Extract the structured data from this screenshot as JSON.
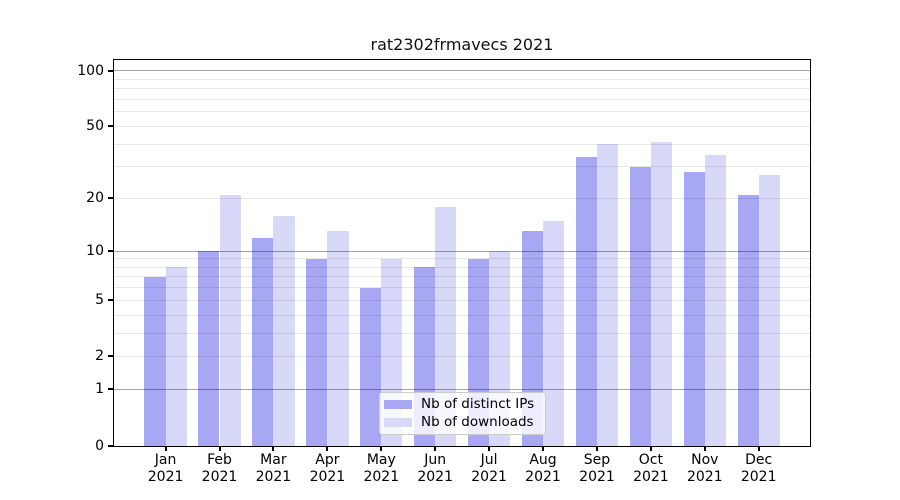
{
  "figure": {
    "title": "rat2302frmavecs 2021",
    "background": "#ffffff"
  },
  "chart_data": {
    "type": "bar",
    "title": "rat2302frmavecs 2021",
    "categories": [
      "Jan",
      "Feb",
      "Mar",
      "Apr",
      "May",
      "Jun",
      "Jul",
      "Aug",
      "Sep",
      "Oct",
      "Nov",
      "Dec"
    ],
    "year": "2021",
    "series": [
      {
        "name": "Nb of distinct IPs",
        "color": "#a7a7f3",
        "values": [
          7,
          10,
          12,
          9,
          6,
          8,
          9,
          13,
          34,
          30,
          28,
          21
        ]
      },
      {
        "name": "Nb of downloads",
        "color": "#d8d8f8",
        "values": [
          8,
          21,
          16,
          13,
          9,
          18,
          10,
          15,
          40,
          41,
          35,
          27
        ]
      }
    ],
    "xlabel": "",
    "ylabel": "",
    "yscale": "log10(1+x)",
    "ylim": [
      0,
      115
    ],
    "ytick_labels": [
      "100",
      "50",
      "20",
      "10",
      "5",
      "2",
      "1",
      "0"
    ],
    "yticks": [
      100,
      50,
      20,
      10,
      5,
      2,
      1,
      0
    ],
    "major_gridlines": [
      1,
      10,
      100
    ],
    "minor_gridlines": [
      2,
      3,
      4,
      5,
      6,
      7,
      8,
      9,
      20,
      30,
      40,
      50,
      60,
      70,
      80,
      90
    ],
    "grid": true,
    "legend_position": "lower center"
  },
  "legend": {
    "items": [
      {
        "label": "Nb of distinct IPs",
        "color": "#a7a7f3"
      },
      {
        "label": "Nb of downloads",
        "color": "#d8d8f8"
      }
    ]
  },
  "colors": {
    "bar_distinct_ips": "#a7a7f3",
    "bar_downloads": "#d8d8f8",
    "grid_major": "rgba(0,0,0,0.35)",
    "grid_minor": "rgba(0,0,0,0.09)",
    "spine": "#000000",
    "text": "#000000",
    "legend_border": "#cccccc",
    "legend_background": "rgba(255,255,255,0.8)"
  }
}
